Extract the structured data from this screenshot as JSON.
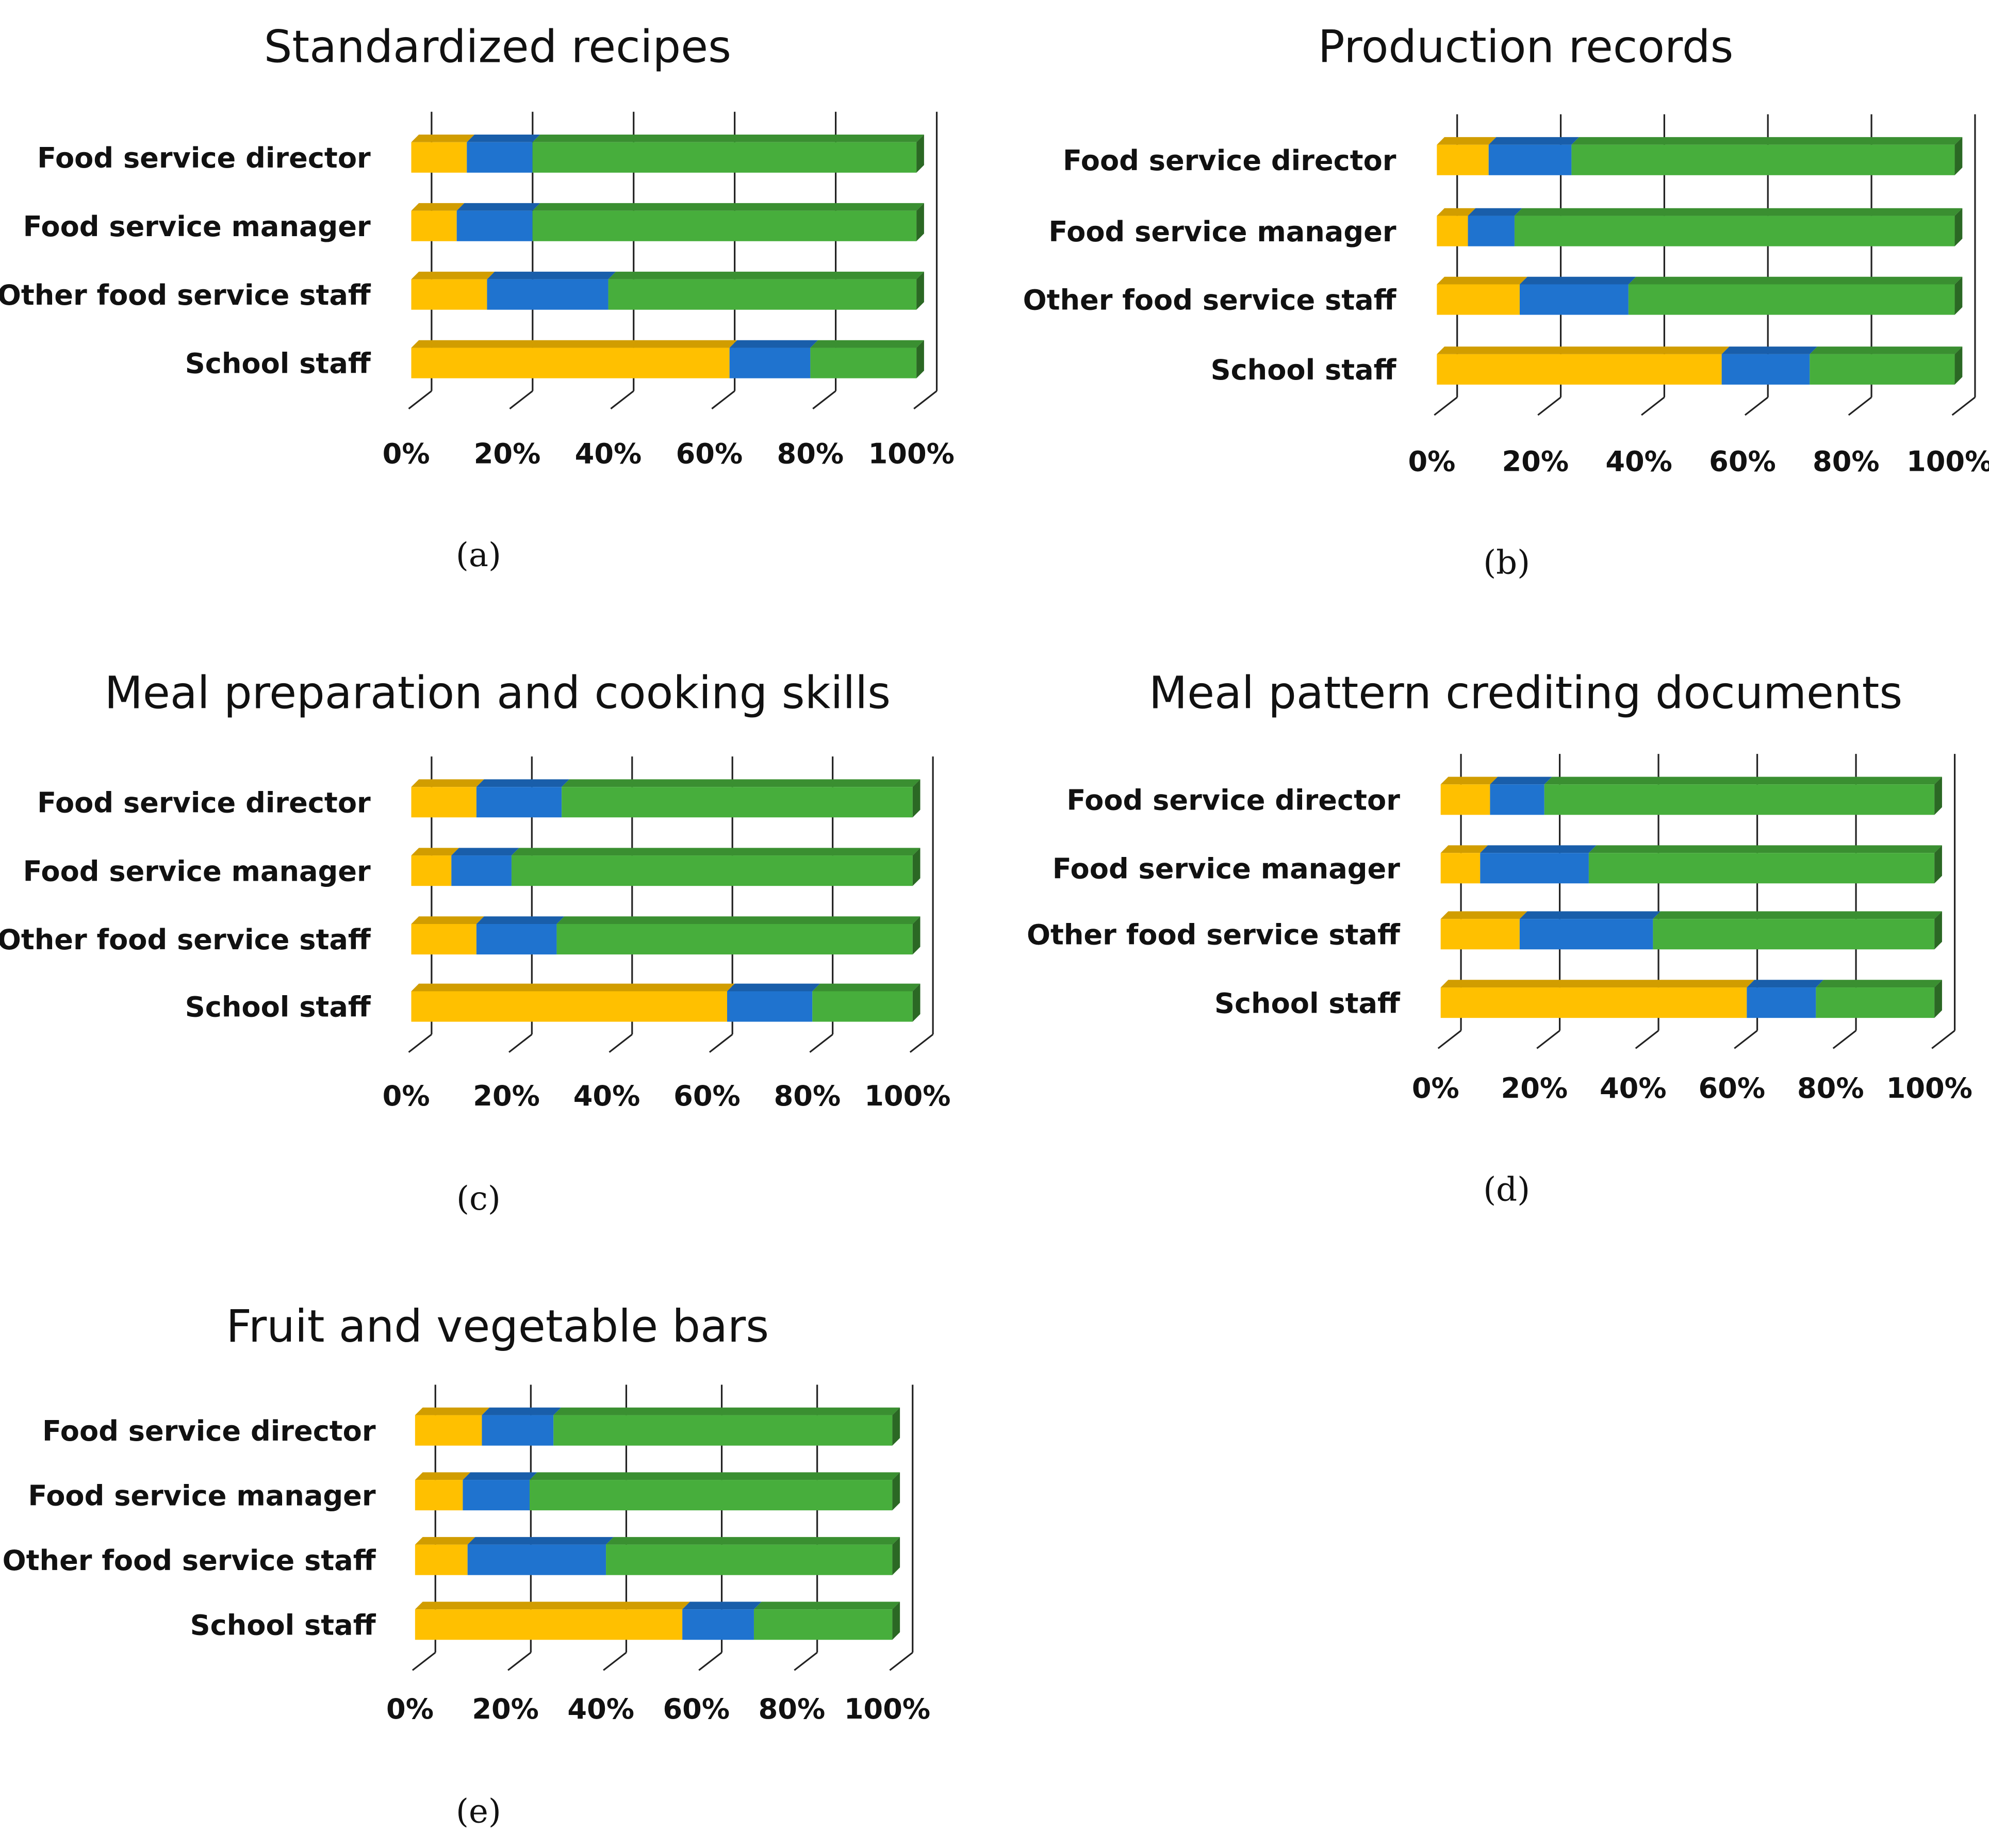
{
  "colors": {
    "yellow": "#FFC000",
    "blue": "#1F73CF",
    "green": "#47AE3C"
  },
  "chart_data": [
    {
      "type": "bar",
      "stacked": true,
      "orientation": "horizontal",
      "title": "Standardized recipes",
      "caption": "(a)",
      "categories": [
        "Food service director",
        "Food service manager",
        "Other food service staff",
        "School staff"
      ],
      "series": [
        {
          "name": "yellow",
          "values": [
            11,
            9,
            15,
            63
          ]
        },
        {
          "name": "blue",
          "values": [
            13,
            15,
            24,
            16
          ]
        },
        {
          "name": "green",
          "values": [
            76,
            76,
            61,
            21
          ]
        }
      ],
      "xticks": [
        "0%",
        "20%",
        "40%",
        "60%",
        "80%",
        "100%"
      ],
      "xlim": [
        0,
        100
      ]
    },
    {
      "type": "bar",
      "stacked": true,
      "orientation": "horizontal",
      "title": "Production records",
      "caption": "(b)",
      "categories": [
        "Food service director",
        "Food service manager",
        "Other food service staff",
        "School staff"
      ],
      "series": [
        {
          "name": "yellow",
          "values": [
            10,
            6,
            16,
            55
          ]
        },
        {
          "name": "blue",
          "values": [
            16,
            9,
            21,
            17
          ]
        },
        {
          "name": "green",
          "values": [
            74,
            85,
            63,
            28
          ]
        }
      ],
      "xticks": [
        "0%",
        "20%",
        "40%",
        "60%",
        "80%",
        "100%"
      ],
      "xlim": [
        0,
        100
      ]
    },
    {
      "type": "bar",
      "stacked": true,
      "orientation": "horizontal",
      "title": "Meal preparation and cooking skills",
      "caption": "(c)",
      "categories": [
        "Food service director",
        "Food service manager",
        "Other food service staff",
        "School staff"
      ],
      "series": [
        {
          "name": "yellow",
          "values": [
            13,
            8,
            13,
            63
          ]
        },
        {
          "name": "blue",
          "values": [
            17,
            12,
            16,
            17
          ]
        },
        {
          "name": "green",
          "values": [
            70,
            80,
            71,
            20
          ]
        }
      ],
      "xticks": [
        "0%",
        "20%",
        "40%",
        "60%",
        "80%",
        "100%"
      ],
      "xlim": [
        0,
        100
      ]
    },
    {
      "type": "bar",
      "stacked": true,
      "orientation": "horizontal",
      "title": "Meal pattern crediting documents",
      "caption": "(d)",
      "categories": [
        "Food service director",
        "Food service manager",
        "Other food service staff",
        "School staff"
      ],
      "series": [
        {
          "name": "yellow",
          "values": [
            10,
            8,
            16,
            62
          ]
        },
        {
          "name": "blue",
          "values": [
            11,
            22,
            27,
            14
          ]
        },
        {
          "name": "green",
          "values": [
            79,
            70,
            57,
            24
          ]
        }
      ],
      "xticks": [
        "0%",
        "20%",
        "40%",
        "60%",
        "80%",
        "100%"
      ],
      "xlim": [
        0,
        100
      ]
    },
    {
      "type": "bar",
      "stacked": true,
      "orientation": "horizontal",
      "title": "Fruit and vegetable bars",
      "caption": "(e)",
      "categories": [
        "Food service director",
        "Food service manager",
        "Other food service staff",
        "School staff"
      ],
      "series": [
        {
          "name": "yellow",
          "values": [
            14,
            10,
            11,
            56
          ]
        },
        {
          "name": "blue",
          "values": [
            15,
            14,
            29,
            15
          ]
        },
        {
          "name": "green",
          "values": [
            71,
            76,
            60,
            29
          ]
        }
      ],
      "xticks": [
        "0%",
        "20%",
        "40%",
        "60%",
        "80%",
        "100%"
      ],
      "xlim": [
        0,
        100
      ]
    }
  ]
}
